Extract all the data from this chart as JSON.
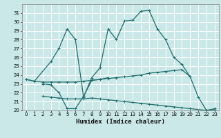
{
  "xlabel": "Humidex (Indice chaleur)",
  "background_color": "#cbe8e8",
  "grid_color": "#ffffff",
  "line_color": "#1e6b6b",
  "ylim": [
    20,
    32
  ],
  "xlim": [
    -0.5,
    23.5
  ],
  "yticks": [
    20,
    21,
    22,
    23,
    24,
    25,
    26,
    27,
    28,
    29,
    30,
    31
  ],
  "xticks": [
    0,
    1,
    2,
    3,
    4,
    5,
    6,
    7,
    8,
    9,
    10,
    11,
    12,
    13,
    14,
    15,
    16,
    17,
    18,
    19,
    20,
    21,
    22,
    23
  ],
  "lines": [
    {
      "x": [
        0,
        1,
        3,
        4,
        5,
        6,
        7,
        8,
        9,
        10,
        11,
        12,
        13,
        14,
        15,
        16,
        17,
        18,
        19,
        20,
        21,
        22,
        23
      ],
      "y": [
        23.5,
        23.3,
        25.5,
        27.0,
        29.2,
        28.0,
        21.5,
        23.7,
        24.8,
        29.2,
        28.0,
        30.1,
        30.2,
        31.2,
        31.3,
        29.2,
        28.0,
        26.0,
        25.2,
        23.8,
        21.5,
        20.0,
        20.2
      ]
    },
    {
      "x": [
        2,
        3,
        4,
        5,
        6,
        7,
        8,
        9,
        10
      ],
      "y": [
        23.0,
        22.9,
        22.0,
        20.2,
        20.2,
        21.6,
        23.4,
        23.5,
        23.7
      ]
    },
    {
      "x": [
        0,
        1,
        2,
        3,
        4,
        5,
        6,
        7,
        8,
        9,
        10,
        11,
        12,
        13,
        14,
        15,
        16,
        17,
        18,
        19,
        20
      ],
      "y": [
        23.5,
        23.3,
        23.2,
        23.2,
        23.2,
        23.2,
        23.2,
        23.3,
        23.4,
        23.5,
        23.6,
        23.7,
        23.8,
        23.9,
        24.0,
        24.2,
        24.3,
        24.4,
        24.5,
        24.6,
        23.8
      ]
    },
    {
      "x": [
        2,
        3,
        4,
        5,
        6,
        7,
        8,
        9,
        10,
        11,
        12,
        13,
        14,
        15,
        16,
        17,
        18,
        19,
        20,
        22,
        23
      ],
      "y": [
        21.6,
        21.5,
        21.4,
        21.3,
        21.3,
        21.3,
        21.4,
        21.3,
        21.2,
        21.1,
        21.0,
        20.9,
        20.8,
        20.7,
        20.6,
        20.5,
        20.4,
        20.3,
        20.2,
        20.0,
        20.1
      ]
    }
  ]
}
